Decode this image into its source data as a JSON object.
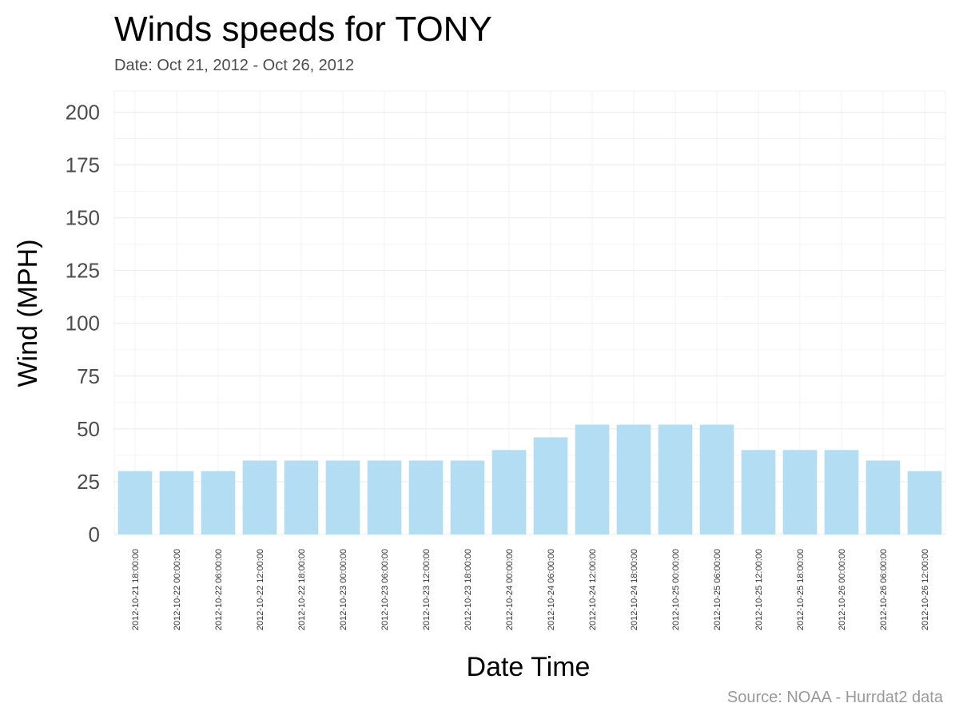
{
  "chart_data": {
    "type": "bar",
    "title": "Winds speeds for TONY",
    "subtitle": "Date:  Oct 21, 2012 - Oct 26, 2012",
    "xlabel": "Date Time",
    "ylabel": "Wind (MPH)",
    "caption": "Source: NOAA - Hurrdat2 data",
    "ylim": [
      0,
      210
    ],
    "yticks": [
      0,
      25,
      50,
      75,
      100,
      125,
      150,
      175,
      200
    ],
    "grid": true,
    "bar_color": "#b3ddf2",
    "categories": [
      "2012-10-21 18:00:00",
      "2012-10-22 00:00:00",
      "2012-10-22 06:00:00",
      "2012-10-22 12:00:00",
      "2012-10-22 18:00:00",
      "2012-10-23 00:00:00",
      "2012-10-23 06:00:00",
      "2012-10-23 12:00:00",
      "2012-10-23 18:00:00",
      "2012-10-24 00:00:00",
      "2012-10-24 06:00:00",
      "2012-10-24 12:00:00",
      "2012-10-24 18:00:00",
      "2012-10-25 00:00:00",
      "2012-10-25 06:00:00",
      "2012-10-25 12:00:00",
      "2012-10-25 18:00:00",
      "2012-10-26 00:00:00",
      "2012-10-26 06:00:00",
      "2012-10-26 12:00:00"
    ],
    "values": [
      30,
      30,
      30,
      35,
      35,
      35,
      35,
      35,
      35,
      40,
      46,
      52,
      52,
      52,
      52,
      40,
      40,
      40,
      35,
      30
    ]
  }
}
